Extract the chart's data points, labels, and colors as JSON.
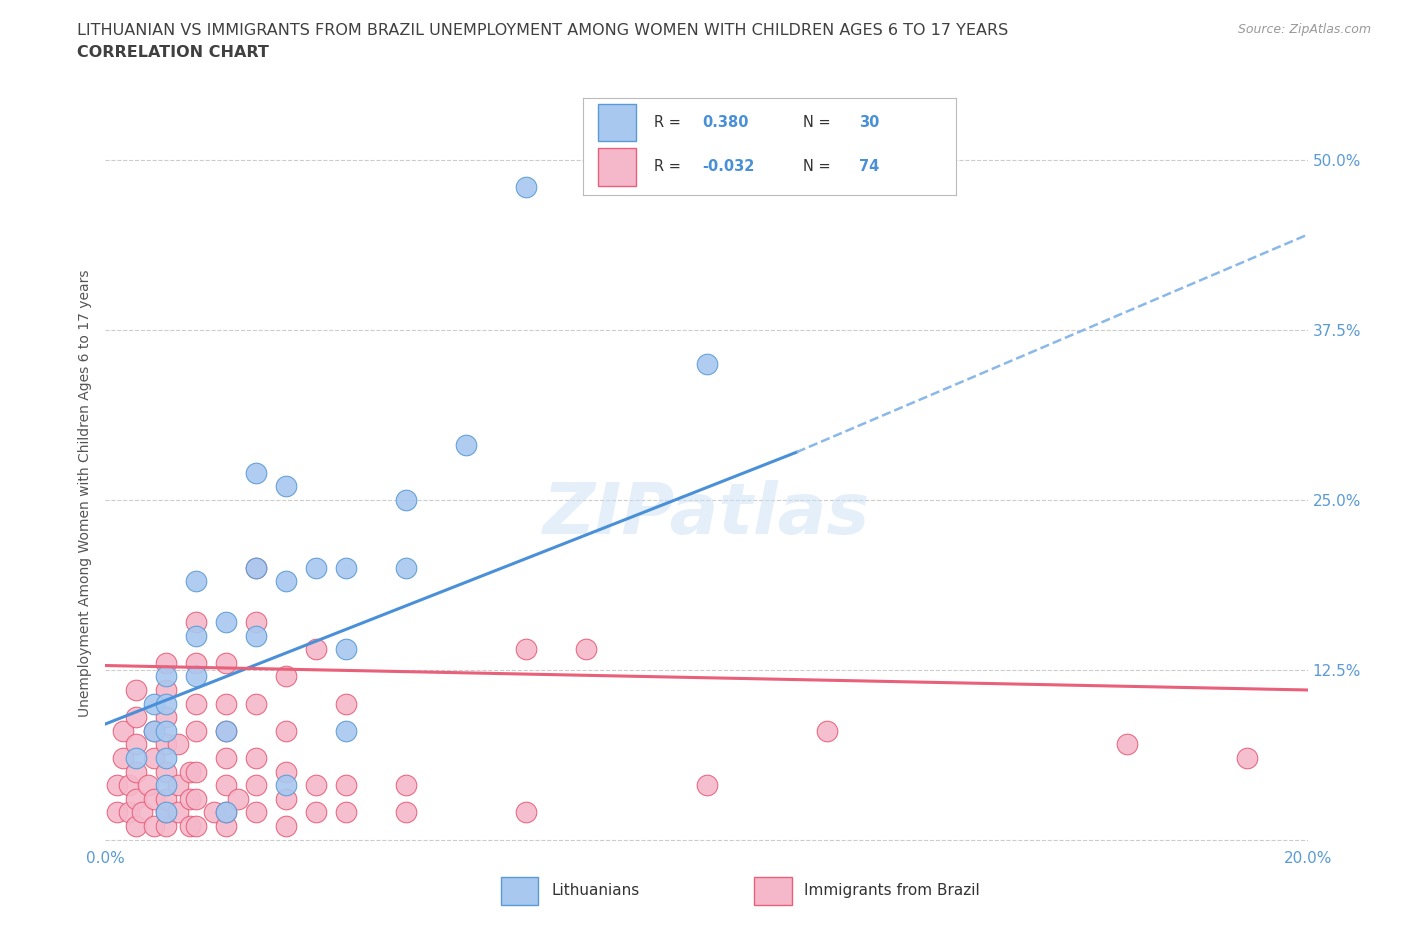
{
  "title_line1": "LITHUANIAN VS IMMIGRANTS FROM BRAZIL UNEMPLOYMENT AMONG WOMEN WITH CHILDREN AGES 6 TO 17 YEARS",
  "title_line2": "CORRELATION CHART",
  "source_text": "Source: ZipAtlas.com",
  "ylabel": "Unemployment Among Women with Children Ages 6 to 17 years",
  "xlim": [
    0.0,
    0.2
  ],
  "ylim": [
    -0.005,
    0.515
  ],
  "xticks": [
    0.0,
    0.05,
    0.1,
    0.15,
    0.2
  ],
  "xtick_labels": [
    "0.0%",
    "",
    "",
    "",
    "20.0%"
  ],
  "yticks": [
    0.0,
    0.125,
    0.25,
    0.375,
    0.5
  ],
  "ytick_labels": [
    "",
    "12.5%",
    "25.0%",
    "37.5%",
    "50.0%"
  ],
  "grid_color": "#cccccc",
  "watermark": "ZIPatlas",
  "blue_color": "#a8c8f0",
  "pink_color": "#f5b8cb",
  "blue_edge_color": "#5b9bd5",
  "pink_edge_color": "#e8607a",
  "blue_line_color": "#4a90d9",
  "pink_line_color": "#e8607a",
  "blue_dash_color": "#8ab8e8",
  "label1": "Lithuanians",
  "label2": "Immigrants from Brazil",
  "title_color": "#404040",
  "axis_label_color": "#5a9bd5",
  "blue_scatter": [
    [
      0.005,
      0.06
    ],
    [
      0.008,
      0.08
    ],
    [
      0.008,
      0.1
    ],
    [
      0.01,
      0.02
    ],
    [
      0.01,
      0.04
    ],
    [
      0.01,
      0.06
    ],
    [
      0.01,
      0.08
    ],
    [
      0.01,
      0.1
    ],
    [
      0.01,
      0.12
    ],
    [
      0.015,
      0.12
    ],
    [
      0.015,
      0.15
    ],
    [
      0.015,
      0.19
    ],
    [
      0.02,
      0.02
    ],
    [
      0.02,
      0.08
    ],
    [
      0.02,
      0.16
    ],
    [
      0.025,
      0.15
    ],
    [
      0.025,
      0.2
    ],
    [
      0.025,
      0.27
    ],
    [
      0.03,
      0.04
    ],
    [
      0.03,
      0.19
    ],
    [
      0.03,
      0.26
    ],
    [
      0.035,
      0.2
    ],
    [
      0.04,
      0.08
    ],
    [
      0.04,
      0.14
    ],
    [
      0.04,
      0.2
    ],
    [
      0.05,
      0.2
    ],
    [
      0.05,
      0.25
    ],
    [
      0.06,
      0.29
    ],
    [
      0.1,
      0.35
    ],
    [
      0.07,
      0.48
    ]
  ],
  "pink_scatter": [
    [
      0.002,
      0.02
    ],
    [
      0.002,
      0.04
    ],
    [
      0.003,
      0.06
    ],
    [
      0.003,
      0.08
    ],
    [
      0.004,
      0.02
    ],
    [
      0.004,
      0.04
    ],
    [
      0.005,
      0.01
    ],
    [
      0.005,
      0.03
    ],
    [
      0.005,
      0.05
    ],
    [
      0.005,
      0.07
    ],
    [
      0.005,
      0.09
    ],
    [
      0.005,
      0.11
    ],
    [
      0.006,
      0.02
    ],
    [
      0.007,
      0.04
    ],
    [
      0.008,
      0.01
    ],
    [
      0.008,
      0.03
    ],
    [
      0.008,
      0.06
    ],
    [
      0.008,
      0.08
    ],
    [
      0.01,
      0.01
    ],
    [
      0.01,
      0.02
    ],
    [
      0.01,
      0.03
    ],
    [
      0.01,
      0.05
    ],
    [
      0.01,
      0.07
    ],
    [
      0.01,
      0.09
    ],
    [
      0.01,
      0.11
    ],
    [
      0.01,
      0.13
    ],
    [
      0.012,
      0.02
    ],
    [
      0.012,
      0.04
    ],
    [
      0.012,
      0.07
    ],
    [
      0.014,
      0.01
    ],
    [
      0.014,
      0.03
    ],
    [
      0.014,
      0.05
    ],
    [
      0.015,
      0.01
    ],
    [
      0.015,
      0.03
    ],
    [
      0.015,
      0.05
    ],
    [
      0.015,
      0.08
    ],
    [
      0.015,
      0.1
    ],
    [
      0.015,
      0.13
    ],
    [
      0.015,
      0.16
    ],
    [
      0.018,
      0.02
    ],
    [
      0.02,
      0.01
    ],
    [
      0.02,
      0.02
    ],
    [
      0.02,
      0.04
    ],
    [
      0.02,
      0.06
    ],
    [
      0.02,
      0.08
    ],
    [
      0.02,
      0.1
    ],
    [
      0.02,
      0.13
    ],
    [
      0.022,
      0.03
    ],
    [
      0.025,
      0.02
    ],
    [
      0.025,
      0.04
    ],
    [
      0.025,
      0.06
    ],
    [
      0.025,
      0.1
    ],
    [
      0.025,
      0.16
    ],
    [
      0.025,
      0.2
    ],
    [
      0.03,
      0.01
    ],
    [
      0.03,
      0.03
    ],
    [
      0.03,
      0.05
    ],
    [
      0.03,
      0.08
    ],
    [
      0.03,
      0.12
    ],
    [
      0.035,
      0.02
    ],
    [
      0.035,
      0.04
    ],
    [
      0.035,
      0.14
    ],
    [
      0.04,
      0.02
    ],
    [
      0.04,
      0.04
    ],
    [
      0.04,
      0.1
    ],
    [
      0.05,
      0.02
    ],
    [
      0.05,
      0.04
    ],
    [
      0.07,
      0.02
    ],
    [
      0.07,
      0.14
    ],
    [
      0.08,
      0.14
    ],
    [
      0.1,
      0.04
    ],
    [
      0.12,
      0.08
    ],
    [
      0.17,
      0.07
    ],
    [
      0.19,
      0.06
    ]
  ],
  "blue_trendline_solid": [
    [
      0.0,
      0.085
    ],
    [
      0.115,
      0.285
    ]
  ],
  "blue_trendline_dash": [
    [
      0.115,
      0.285
    ],
    [
      0.2,
      0.445
    ]
  ],
  "pink_trendline": [
    [
      0.0,
      0.128
    ],
    [
      0.2,
      0.11
    ]
  ]
}
